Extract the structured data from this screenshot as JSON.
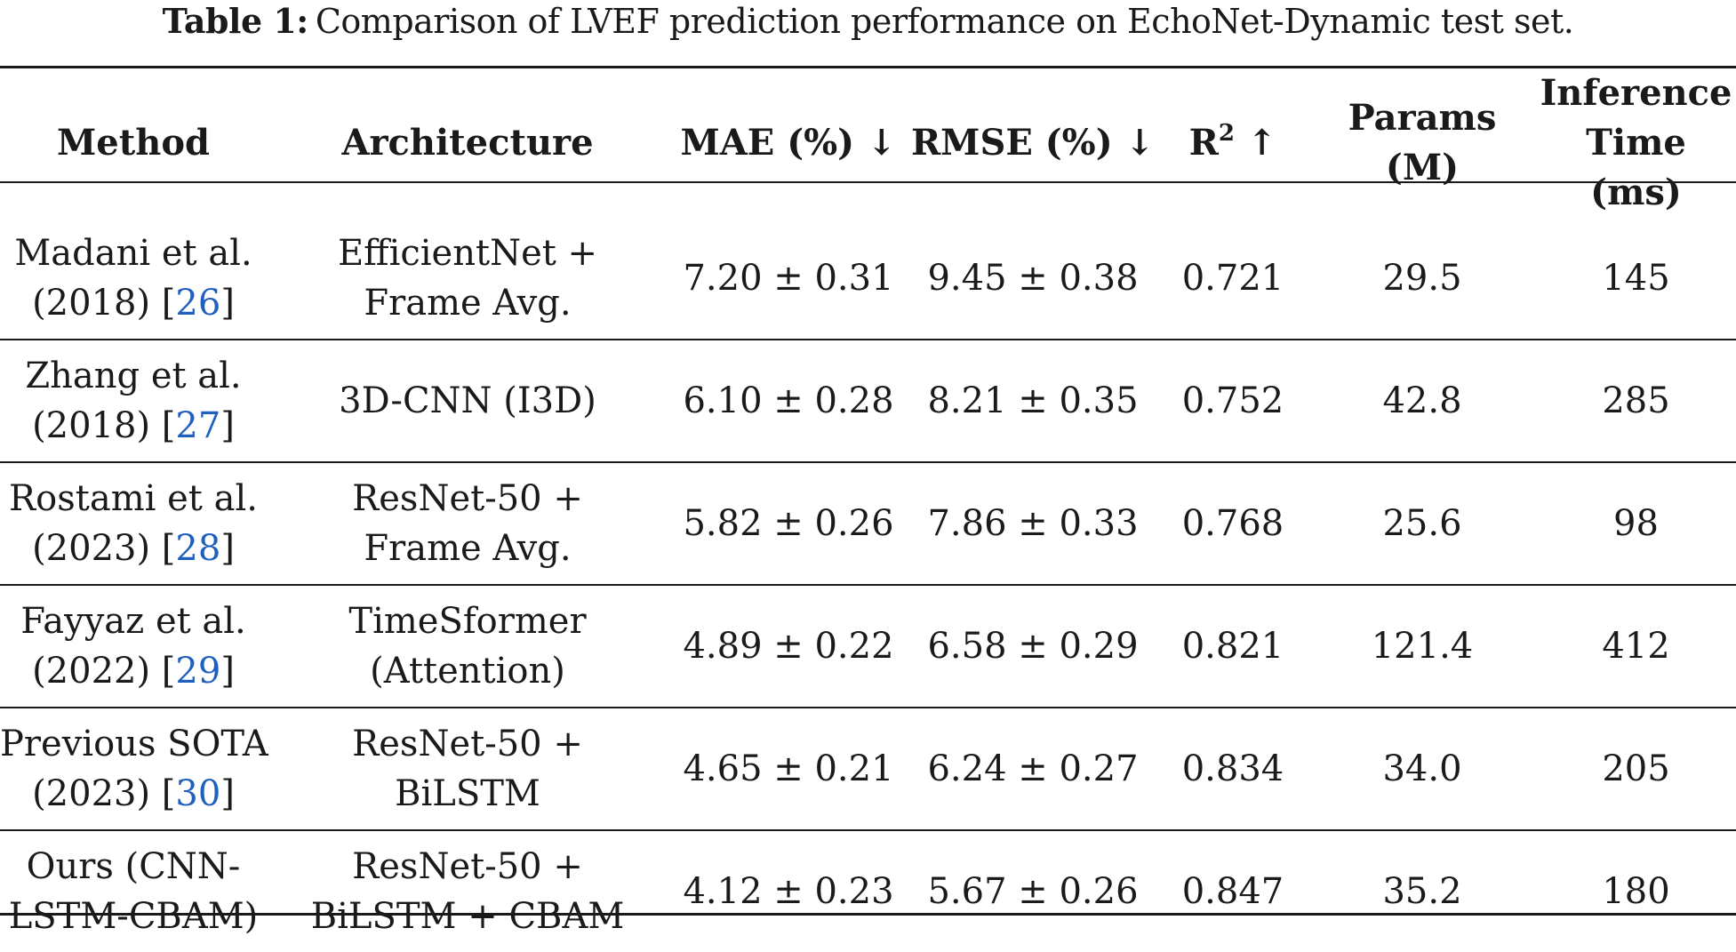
{
  "caption": {
    "label": "Table 1:",
    "text": "Comparison of LVEF prediction performance on EchoNet-Dynamic test set."
  },
  "headers": {
    "method": "Method",
    "architecture": "Architecture",
    "mae": "MAE (%) ↓",
    "rmse": "RMSE (%) ↓",
    "r2_base": "R",
    "r2_sup": "2",
    "r2_arrow": " ↑",
    "params": "Params (M)",
    "inference_line1": "Inference",
    "inference_line2": "Time (ms)"
  },
  "rows": [
    {
      "method_line1": "Madani et al.",
      "method_year_open": "(2018) [",
      "method_cite": "26",
      "method_year_close": "]",
      "arch_line1": "EfficientNet +",
      "arch_line2": "Frame Avg.",
      "mae": "7.20 ± 0.31",
      "rmse": "9.45 ± 0.38",
      "r2": "0.721",
      "params": "29.5",
      "inference": "145"
    },
    {
      "method_line1": "Zhang et al.",
      "method_year_open": "(2018) [",
      "method_cite": "27",
      "method_year_close": "]",
      "arch_line1": "3D-CNN (I3D)",
      "arch_line2": "",
      "mae": "6.10 ± 0.28",
      "rmse": "8.21 ± 0.35",
      "r2": "0.752",
      "params": "42.8",
      "inference": "285"
    },
    {
      "method_line1": "Rostami et al.",
      "method_year_open": "(2023) [",
      "method_cite": "28",
      "method_year_close": "]",
      "arch_line1": "ResNet-50 +",
      "arch_line2": "Frame Avg.",
      "mae": "5.82 ± 0.26",
      "rmse": "7.86 ± 0.33",
      "r2": "0.768",
      "params": "25.6",
      "inference": "98"
    },
    {
      "method_line1": "Fayyaz et al.",
      "method_year_open": "(2022) [",
      "method_cite": "29",
      "method_year_close": "]",
      "arch_line1": "TimeSformer",
      "arch_line2": "(Attention)",
      "mae": "4.89 ± 0.22",
      "rmse": "6.58 ± 0.29",
      "r2": "0.821",
      "params": "121.4",
      "inference": "412"
    },
    {
      "method_line1": "Previous SOTA",
      "method_year_open": "(2023) [",
      "method_cite": "30",
      "method_year_close": "]",
      "arch_line1": "ResNet-50 +",
      "arch_line2": "BiLSTM",
      "mae": "4.65 ± 0.21",
      "rmse": "6.24 ± 0.27",
      "r2": "0.834",
      "params": "34.0",
      "inference": "205"
    },
    {
      "method_line1": "Ours (CNN-",
      "method_year_open": "LSTM-CBAM)",
      "method_cite": "",
      "method_year_close": "",
      "arch_line1": "ResNet-50 +",
      "arch_line2": "BiLSTM + CBAM",
      "mae": "4.12 ± 0.23",
      "rmse": "5.67 ± 0.26",
      "r2": "0.847",
      "params": "35.2",
      "inference": "180"
    }
  ],
  "colors": {
    "text": "#1a1a1a",
    "citation_link": "#1f5fbf",
    "background": "#ffffff"
  }
}
